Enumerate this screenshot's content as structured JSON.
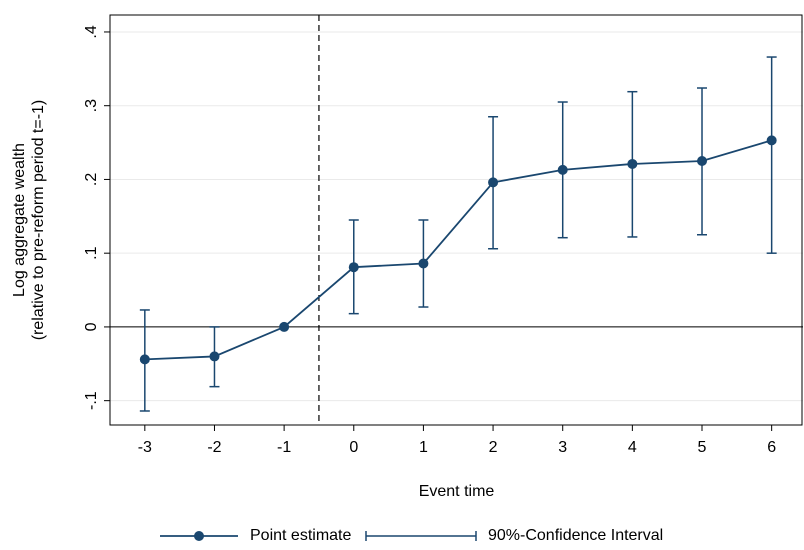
{
  "chart_data": {
    "type": "errorbar-line",
    "x": [
      -3,
      -2,
      -1,
      0,
      1,
      2,
      3,
      4,
      5,
      6
    ],
    "series": [
      {
        "name": "Point estimate",
        "color": "#1a476f",
        "values": [
          -0.044,
          -0.04,
          0,
          0.081,
          0.086,
          0.196,
          0.213,
          0.221,
          0.225,
          0.253
        ]
      }
    ],
    "interval": {
      "name": "90%-Confidence Interval",
      "color": "#1a476f",
      "lower": [
        -0.114,
        -0.081,
        null,
        0.018,
        0.027,
        0.106,
        0.121,
        0.122,
        0.125,
        0.1
      ],
      "upper": [
        0.023,
        0.0,
        null,
        0.145,
        0.145,
        0.285,
        0.305,
        0.319,
        0.324,
        0.366
      ]
    },
    "xlim": [
      -3.5,
      6.45
    ],
    "ylim": [
      -0.133,
      0.423
    ],
    "xticks": [
      -3,
      -2,
      -1,
      0,
      1,
      2,
      3,
      4,
      5,
      6
    ],
    "yticks": [
      {
        "value": -0.1,
        "label": "-.1"
      },
      0,
      {
        "value": 0.1,
        "label": ".1"
      },
      {
        "value": 0.2,
        "label": ".2"
      },
      {
        "value": 0.3,
        "label": ".3"
      },
      {
        "value": 0.4,
        "label": ".4"
      }
    ],
    "grid": true,
    "reference_lines": {
      "x": -0.5,
      "y": 0
    },
    "xlabel": "Event time",
    "ylabel": [
      "Log aggregate wealth",
      "(relative to pre-reform period t=-1)"
    ],
    "legend": "bottom"
  }
}
